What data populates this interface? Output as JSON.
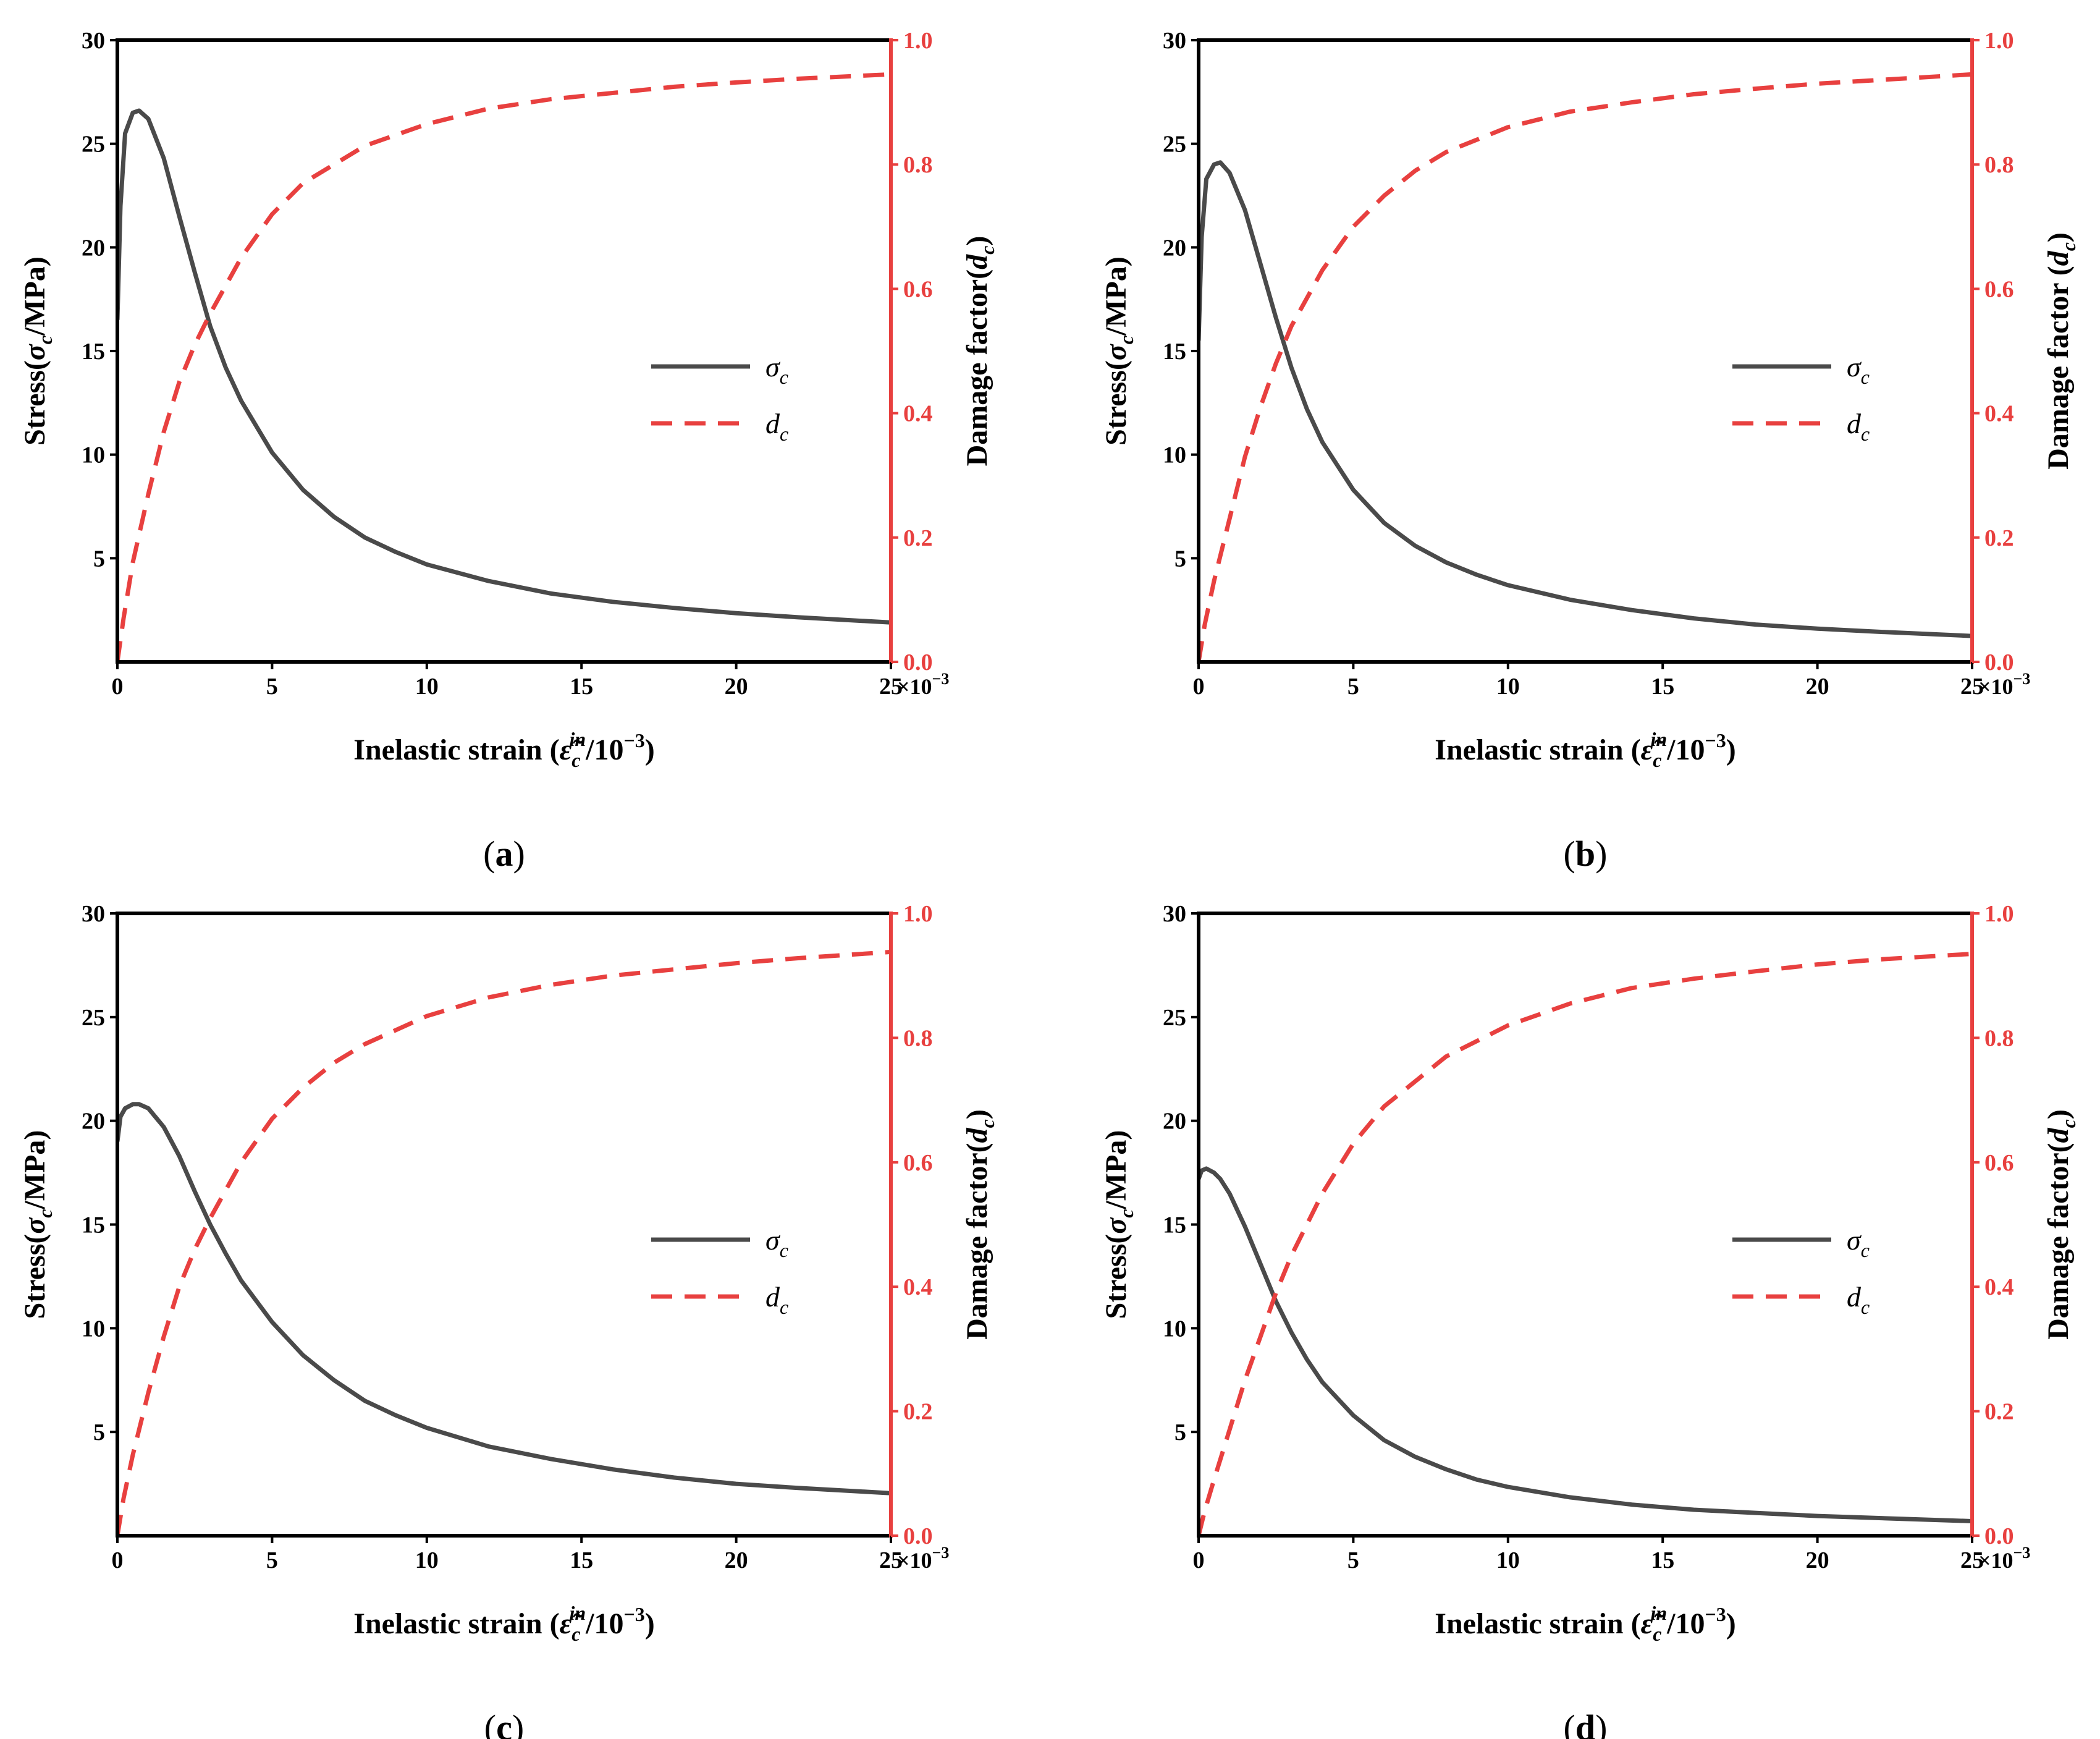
{
  "colors": {
    "stress": "#4a4a4a",
    "damage": "#e8403f",
    "axis": "#000000"
  },
  "chart_data": [
    {
      "type": "line",
      "panel": "(a)",
      "panel_letter": "a",
      "xlabel": "Inelastic strain (ε̃c in/10−3)",
      "xlabel_parts": {
        "pre": "Inelastic strain (",
        "sym": "ε̃",
        "sub": "c",
        "sup": "in",
        "post": "/10",
        "exp": "−3",
        "close": ")"
      },
      "ylabel_left": "Stress(σc/MPa)",
      "ylabel_left_parts": {
        "pre": "Stress(",
        "sym": "σ",
        "sub": "c",
        "post": "/MPa)"
      },
      "ylabel_right": "Damage factor(dc)",
      "ylabel_right_parts": {
        "pre": "Damage factor(",
        "sym": "d",
        "sub": "c",
        "post": ")"
      },
      "x_multiplier": "×10",
      "x_multiplier_exp": "−3",
      "xlim": [
        0,
        25
      ],
      "ylim_left": [
        0,
        30
      ],
      "ylim_right": [
        0,
        1.0
      ],
      "x_ticks": [
        "0",
        "5",
        "10",
        "15",
        "20",
        "25"
      ],
      "y_left_ticks": [
        "5",
        "10",
        "15",
        "20",
        "25",
        "30"
      ],
      "y_right_ticks": [
        "0.0",
        "0.2",
        "0.4",
        "0.6",
        "0.8",
        "1.0"
      ],
      "legend": {
        "stress": "σ",
        "stress_sub": "c",
        "damage": "d",
        "damage_sub": "c"
      },
      "series": [
        {
          "name": "σc",
          "axis": "left",
          "x": [
            0,
            0.1,
            0.25,
            0.5,
            0.7,
            1,
            1.5,
            2,
            2.5,
            3,
            3.5,
            4,
            5,
            6,
            7,
            8,
            9,
            10,
            12,
            14,
            16,
            18,
            20,
            22,
            25
          ],
          "y": [
            16.5,
            22,
            25.5,
            26.5,
            26.6,
            26.2,
            24.3,
            21.5,
            18.8,
            16.2,
            14.2,
            12.6,
            10.1,
            8.3,
            7.0,
            6.0,
            5.3,
            4.7,
            3.9,
            3.3,
            2.9,
            2.6,
            2.35,
            2.15,
            1.9
          ]
        },
        {
          "name": "dc",
          "axis": "right",
          "x": [
            0,
            0.2,
            0.5,
            1,
            1.5,
            2,
            2.5,
            3,
            4,
            5,
            6,
            7,
            8,
            10,
            12,
            14,
            16,
            18,
            20,
            22,
            25
          ],
          "y": [
            0,
            0.07,
            0.16,
            0.27,
            0.37,
            0.45,
            0.51,
            0.56,
            0.65,
            0.72,
            0.77,
            0.8,
            0.83,
            0.865,
            0.89,
            0.905,
            0.915,
            0.925,
            0.932,
            0.938,
            0.945
          ]
        }
      ]
    },
    {
      "type": "line",
      "panel": "(b)",
      "panel_letter": "b",
      "xlabel": "Inelastic strain (ε̃c in/10−3)",
      "xlabel_parts": {
        "pre": "Inelastic strain (",
        "sym": "ε̃",
        "sub": "c",
        "sup": "in",
        "post": "/10",
        "exp": "−3",
        "close": ")"
      },
      "ylabel_left": "Stress(σc/MPa)",
      "ylabel_left_parts": {
        "pre": "Stress(",
        "sym": "σ",
        "sub": "c",
        "post": "/MPa)"
      },
      "ylabel_right": "Damage factor (dc)",
      "ylabel_right_parts": {
        "pre": "Damage factor (",
        "sym": "d",
        "sub": "c",
        "post": ")"
      },
      "x_multiplier": "×10",
      "x_multiplier_exp": "−3",
      "xlim": [
        0,
        25
      ],
      "ylim_left": [
        0,
        30
      ],
      "ylim_right": [
        0,
        1.0
      ],
      "x_ticks": [
        "0",
        "5",
        "10",
        "15",
        "20",
        "25"
      ],
      "y_left_ticks": [
        "5",
        "10",
        "15",
        "20",
        "25",
        "30"
      ],
      "y_right_ticks": [
        "0.0",
        "0.2",
        "0.4",
        "0.6",
        "0.8",
        "1.0"
      ],
      "legend": {
        "stress": "σ",
        "stress_sub": "c",
        "damage": "d",
        "damage_sub": "c"
      },
      "series": [
        {
          "name": "σc",
          "axis": "left",
          "x": [
            0,
            0.1,
            0.25,
            0.5,
            0.7,
            1,
            1.5,
            2,
            2.5,
            3,
            3.5,
            4,
            5,
            6,
            7,
            8,
            9,
            10,
            12,
            14,
            16,
            18,
            20,
            22,
            25
          ],
          "y": [
            15.5,
            20.5,
            23.3,
            24.0,
            24.1,
            23.6,
            21.8,
            19.2,
            16.6,
            14.2,
            12.2,
            10.6,
            8.3,
            6.7,
            5.6,
            4.8,
            4.2,
            3.7,
            3.0,
            2.5,
            2.1,
            1.8,
            1.6,
            1.45,
            1.25
          ]
        },
        {
          "name": "dc",
          "axis": "right",
          "x": [
            0,
            0.2,
            0.5,
            1,
            1.5,
            2,
            2.5,
            3,
            4,
            5,
            6,
            7,
            8,
            10,
            12,
            14,
            16,
            18,
            20,
            22,
            25
          ],
          "y": [
            0,
            0.06,
            0.13,
            0.23,
            0.33,
            0.41,
            0.48,
            0.54,
            0.63,
            0.7,
            0.75,
            0.79,
            0.82,
            0.86,
            0.885,
            0.9,
            0.913,
            0.922,
            0.93,
            0.936,
            0.945
          ]
        }
      ]
    },
    {
      "type": "line",
      "panel": "(c)",
      "panel_letter": "c",
      "xlabel": "Inelastic strain (ε̃c in/10−3)",
      "xlabel_parts": {
        "pre": "Inelastic strain (",
        "sym": "ε̃",
        "sub": "c",
        "sup": "in",
        "post": "/10",
        "exp": "−3",
        "close": ")"
      },
      "ylabel_left": "Stress(σc/MPa)",
      "ylabel_left_parts": {
        "pre": "Stress(",
        "sym": "σ",
        "sub": "c",
        "post": "/MPa)"
      },
      "ylabel_right": "Damage factor(dc)",
      "ylabel_right_parts": {
        "pre": "Damage factor(",
        "sym": "d",
        "sub": "c",
        "post": ")"
      },
      "x_multiplier": "×10",
      "x_multiplier_exp": "−3",
      "xlim": [
        0,
        25
      ],
      "ylim_left": [
        0,
        30
      ],
      "ylim_right": [
        0,
        1.0
      ],
      "x_ticks": [
        "0",
        "5",
        "10",
        "15",
        "20",
        "25"
      ],
      "y_left_ticks": [
        "5",
        "10",
        "15",
        "20",
        "25",
        "30"
      ],
      "y_right_ticks": [
        "0.0",
        "0.2",
        "0.4",
        "0.6",
        "0.8",
        "1.0"
      ],
      "legend": {
        "stress": "σ",
        "stress_sub": "c",
        "damage": "d",
        "damage_sub": "c"
      },
      "series": [
        {
          "name": "σc",
          "axis": "left",
          "x": [
            0,
            0.1,
            0.25,
            0.5,
            0.7,
            1,
            1.5,
            2,
            2.5,
            3,
            3.5,
            4,
            5,
            6,
            7,
            8,
            9,
            10,
            12,
            14,
            16,
            18,
            20,
            22,
            25
          ],
          "y": [
            19.0,
            20.2,
            20.6,
            20.8,
            20.8,
            20.6,
            19.7,
            18.3,
            16.6,
            15.0,
            13.6,
            12.3,
            10.3,
            8.7,
            7.5,
            6.5,
            5.8,
            5.2,
            4.3,
            3.7,
            3.2,
            2.8,
            2.5,
            2.3,
            2.05
          ]
        },
        {
          "name": "dc",
          "axis": "right",
          "x": [
            0,
            0.2,
            0.5,
            1,
            1.5,
            2,
            2.5,
            3,
            4,
            5,
            6,
            7,
            8,
            10,
            12,
            14,
            16,
            18,
            20,
            22,
            25
          ],
          "y": [
            0,
            0.06,
            0.13,
            0.23,
            0.32,
            0.4,
            0.46,
            0.51,
            0.6,
            0.67,
            0.72,
            0.76,
            0.79,
            0.835,
            0.865,
            0.885,
            0.9,
            0.91,
            0.92,
            0.928,
            0.938
          ]
        }
      ]
    },
    {
      "type": "line",
      "panel": "(d)",
      "panel_letter": "d",
      "xlabel": "Inelastic strain (ε̃c in/10−3)",
      "xlabel_parts": {
        "pre": "Inelastic strain (",
        "sym": "ε̃",
        "sub": "c",
        "sup": "in",
        "post": "/10",
        "exp": "−3",
        "close": ")"
      },
      "ylabel_left": "Stress(σc/MPa)",
      "ylabel_left_parts": {
        "pre": "Stress(",
        "sym": "σ",
        "sub": "c",
        "post": "/MPa)"
      },
      "ylabel_right": "Damage factor(dc)",
      "ylabel_right_parts": {
        "pre": "Damage factor(",
        "sym": "d",
        "sub": "c",
        "post": ")"
      },
      "x_multiplier": "×10",
      "x_multiplier_exp": "−3",
      "xlim": [
        0,
        25
      ],
      "ylim_left": [
        0,
        30
      ],
      "ylim_right": [
        0,
        1.0
      ],
      "x_ticks": [
        "0",
        "5",
        "10",
        "15",
        "20",
        "25"
      ],
      "y_left_ticks": [
        "5",
        "10",
        "15",
        "20",
        "25",
        "30"
      ],
      "y_right_ticks": [
        "0.0",
        "0.2",
        "0.4",
        "0.6",
        "0.8",
        "1.0"
      ],
      "legend": {
        "stress": "σ",
        "stress_sub": "c",
        "damage": "d",
        "damage_sub": "c"
      },
      "series": [
        {
          "name": "σc",
          "axis": "left",
          "x": [
            0,
            0.1,
            0.25,
            0.5,
            0.7,
            1,
            1.5,
            2,
            2.5,
            3,
            3.5,
            4,
            5,
            6,
            7,
            8,
            9,
            10,
            12,
            14,
            16,
            18,
            20,
            22,
            25
          ],
          "y": [
            17.2,
            17.6,
            17.7,
            17.5,
            17.2,
            16.5,
            14.9,
            13.1,
            11.3,
            9.8,
            8.5,
            7.4,
            5.8,
            4.6,
            3.8,
            3.2,
            2.7,
            2.35,
            1.85,
            1.5,
            1.25,
            1.1,
            0.95,
            0.85,
            0.7
          ]
        },
        {
          "name": "dc",
          "axis": "right",
          "x": [
            0,
            0.2,
            0.5,
            1,
            1.5,
            2,
            2.5,
            3,
            4,
            5,
            6,
            7,
            8,
            10,
            12,
            14,
            16,
            18,
            20,
            22,
            25
          ],
          "y": [
            0,
            0.04,
            0.09,
            0.17,
            0.25,
            0.32,
            0.39,
            0.45,
            0.55,
            0.63,
            0.69,
            0.73,
            0.77,
            0.82,
            0.855,
            0.88,
            0.895,
            0.907,
            0.918,
            0.926,
            0.935
          ]
        }
      ]
    }
  ]
}
